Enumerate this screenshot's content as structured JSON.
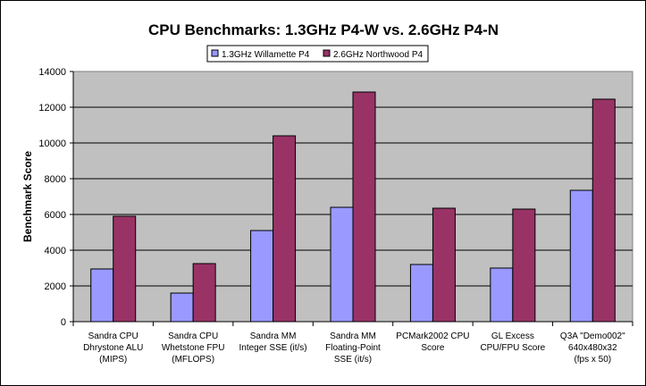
{
  "chart_data": {
    "type": "bar",
    "title": "CPU Benchmarks: 1.3GHz P4-W vs. 2.6GHz P4-N",
    "xlabel": "",
    "ylabel": "Benchmark Score",
    "ylim": [
      0,
      14000
    ],
    "yticks": [
      0,
      2000,
      4000,
      6000,
      8000,
      10000,
      12000,
      14000
    ],
    "grid": true,
    "legend_position": "top-center",
    "categories": [
      [
        "Sandra CPU",
        "Dhrystone ALU",
        "(MIPS)"
      ],
      [
        "Sandra CPU",
        "Whetstone FPU",
        "(MFLOPS)"
      ],
      [
        "Sandra MM",
        "Integer SSE (it/s)"
      ],
      [
        "Sandra MM",
        "Floating-Point",
        "SSE (it/s)"
      ],
      [
        "PCMark2002 CPU",
        "Score"
      ],
      [
        "GL Excess",
        "CPU/FPU Score"
      ],
      [
        "Q3A \"Demo002\"",
        "640x480x32",
        "(fps x 50)"
      ]
    ],
    "series": [
      {
        "name": "1.3GHz Willamette P4",
        "color": "#9999FF",
        "values": [
          2950,
          1600,
          5100,
          6400,
          3200,
          3000,
          7350
        ]
      },
      {
        "name": "2.6GHz Northwood P4",
        "color": "#993366",
        "values": [
          5900,
          3250,
          10400,
          12850,
          6350,
          6300,
          12450
        ]
      }
    ]
  }
}
